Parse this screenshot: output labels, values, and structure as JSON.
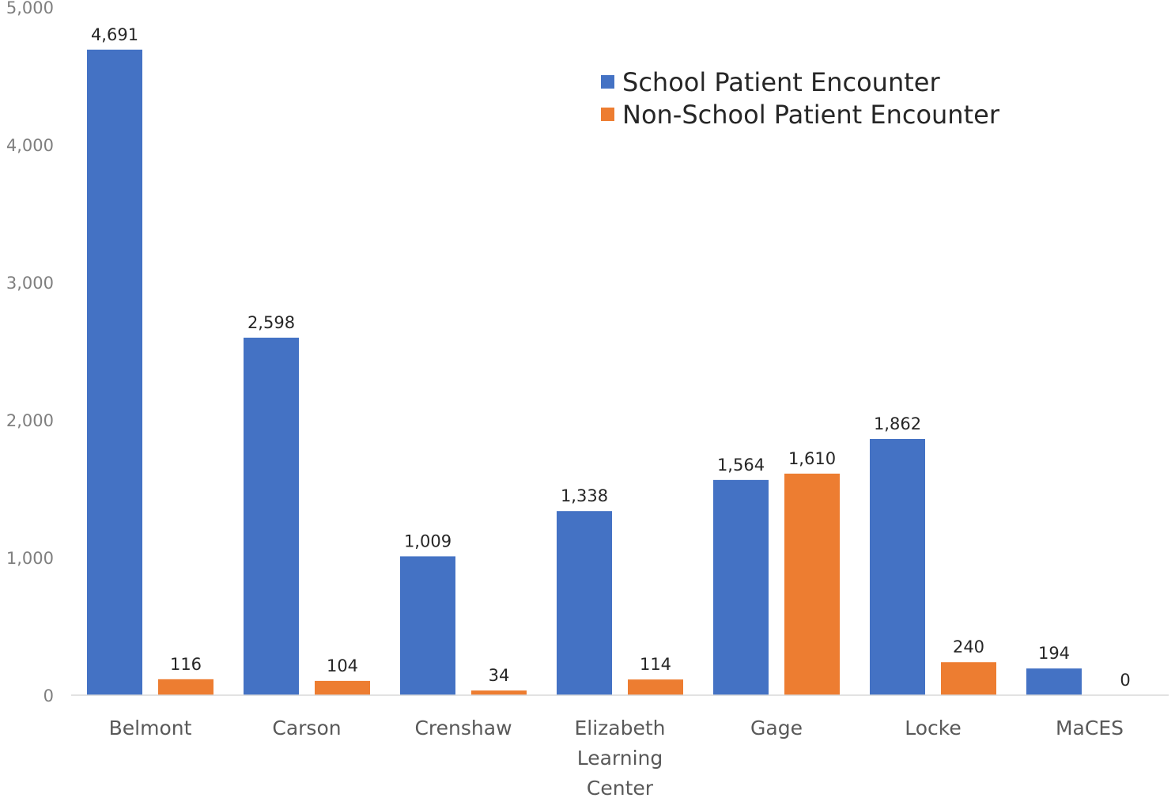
{
  "chart_data": {
    "type": "bar",
    "categories": [
      "Belmont",
      "Carson",
      "Crenshaw",
      "Elizabeth Learning Center",
      "Gage",
      "Locke",
      "MaCES"
    ],
    "category_lines": [
      [
        "Belmont"
      ],
      [
        "Carson"
      ],
      [
        "Crenshaw"
      ],
      [
        "Elizabeth",
        "Learning",
        "Center"
      ],
      [
        "Gage"
      ],
      [
        "Locke"
      ],
      [
        "MaCES"
      ]
    ],
    "series": [
      {
        "name": "School Patient Encounter",
        "color": "#4472c4",
        "values": [
          4691,
          2598,
          1009,
          1338,
          1564,
          1862,
          194
        ],
        "labels": [
          "4,691",
          "2,598",
          "1,009",
          "1,338",
          "1,564",
          "1,862",
          "194"
        ]
      },
      {
        "name": "Non-School Patient Encounter",
        "color": "#ed7d31",
        "values": [
          116,
          104,
          34,
          114,
          1610,
          240,
          0
        ],
        "labels": [
          "116",
          "104",
          "34",
          "114",
          "1,610",
          "240",
          "0"
        ]
      }
    ],
    "ylim": [
      0,
      5000
    ],
    "yticks": [
      0,
      1000,
      2000,
      3000,
      4000,
      5000
    ],
    "ytick_labels": [
      "0",
      "1,000",
      "2,000",
      "3,000",
      "4,000",
      "5,000"
    ],
    "grid": false,
    "legend_position": "top-right",
    "title": "",
    "xlabel": "",
    "ylabel": ""
  }
}
